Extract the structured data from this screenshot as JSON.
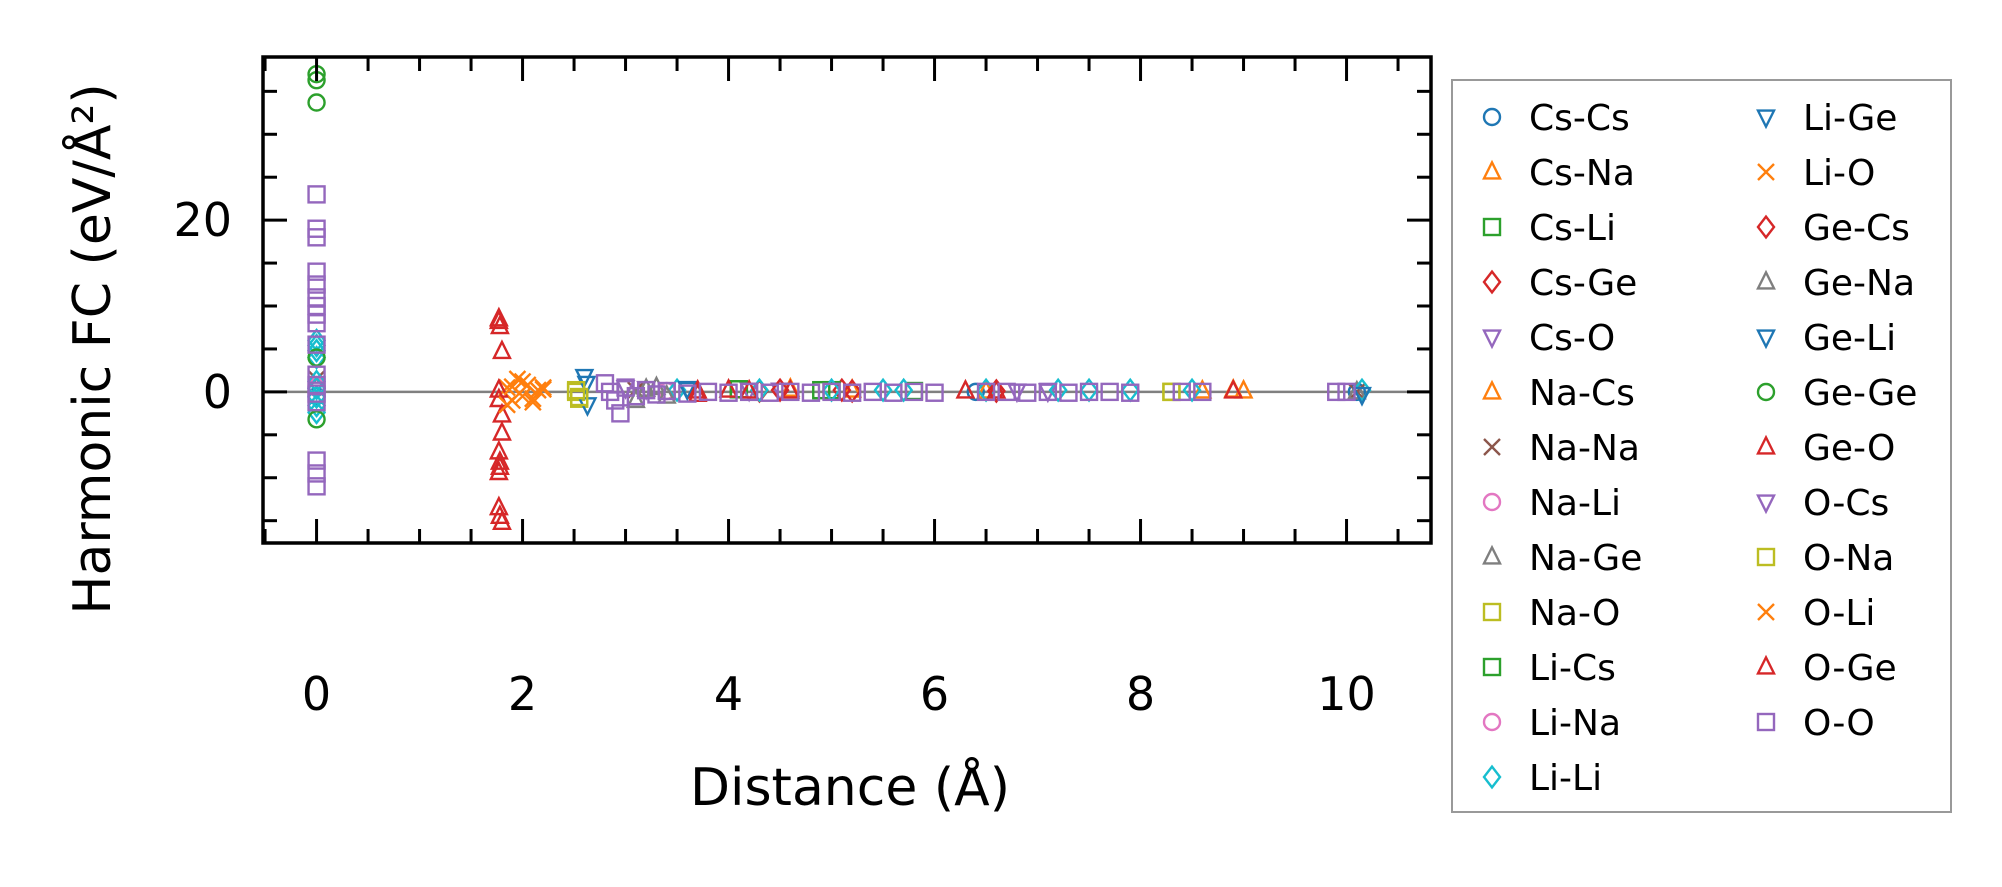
{
  "chart_data": {
    "type": "scatter",
    "title": "",
    "xlabel": "Distance (Å)",
    "ylabel": "Harmonic FC (eV/Å²)",
    "xlim": [
      -0.52,
      10.82
    ],
    "ylim": [
      -17.6,
      39
    ],
    "xticks": [
      0,
      2,
      4,
      6,
      8,
      10
    ],
    "xtick_labels": [
      "0",
      "2",
      "4",
      "6",
      "8",
      "10"
    ],
    "yticks": [
      0,
      20
    ],
    "ytick_labels": [
      "0",
      "20"
    ],
    "x_minor_step": 0.5,
    "y_minor_step": 5,
    "reference_line_y": 0,
    "legend_placement": "outside-right",
    "series": [
      {
        "name": "Cs-Cs",
        "color": "#1f77b4",
        "marker": "circle",
        "points": [
          [
            0,
            0.5
          ],
          [
            0,
            -0.5
          ],
          [
            6.4,
            0
          ],
          [
            10.1,
            0
          ]
        ]
      },
      {
        "name": "Cs-Na",
        "color": "#ff7f0e",
        "marker": "triangle-up",
        "points": [
          [
            4.6,
            0.3
          ],
          [
            5.2,
            0.2
          ],
          [
            6.5,
            0.1
          ],
          [
            8.9,
            0.2
          ]
        ]
      },
      {
        "name": "Cs-Li",
        "color": "#2ca02c",
        "marker": "square",
        "points": [
          [
            4.1,
            0.3
          ],
          [
            4.9,
            0.2
          ],
          [
            5.8,
            0.1
          ]
        ]
      },
      {
        "name": "Cs-Ge",
        "color": "#d62728",
        "marker": "diamond",
        "points": [
          [
            4.3,
            0.1
          ],
          [
            5.1,
            0.2
          ],
          [
            6.6,
            0.1
          ]
        ]
      },
      {
        "name": "Cs-O",
        "color": "#9467bd",
        "marker": "triangle-down",
        "points": [
          [
            3.2,
            0.4
          ],
          [
            4.5,
            0.2
          ],
          [
            7.1,
            0.1
          ]
        ]
      },
      {
        "name": "Na-Cs",
        "color": "#ff7f0e",
        "marker": "triangle-up",
        "points": [
          [
            4.6,
            0.3
          ],
          [
            8.6,
            0.1
          ],
          [
            9.0,
            0.1
          ]
        ]
      },
      {
        "name": "Na-Na",
        "color": "#8c564b",
        "marker": "x",
        "points": [
          [
            0,
            1.5
          ],
          [
            3.1,
            0.2
          ],
          [
            10.1,
            0
          ]
        ]
      },
      {
        "name": "Na-Li",
        "color": "#e377c2",
        "marker": "circle",
        "points": [
          [
            0,
            0.8
          ],
          [
            3.4,
            0.1
          ]
        ]
      },
      {
        "name": "Na-Ge",
        "color": "#7f7f7f",
        "marker": "triangle-up",
        "points": [
          [
            3.1,
            -1
          ],
          [
            3.3,
            0.5
          ],
          [
            10.1,
            0
          ]
        ]
      },
      {
        "name": "Na-O",
        "color": "#bcbd22",
        "marker": "square",
        "points": [
          [
            2.52,
            0
          ],
          [
            2.55,
            -0.8
          ],
          [
            8.3,
            0
          ]
        ]
      },
      {
        "name": "Li-Cs",
        "color": "#2ca02c",
        "marker": "square",
        "points": [
          [
            4.1,
            0.3
          ],
          [
            5.0,
            0.2
          ]
        ]
      },
      {
        "name": "Li-Na",
        "color": "#e377c2",
        "marker": "circle",
        "points": [
          [
            0,
            0.5
          ],
          [
            3.4,
            0.1
          ]
        ]
      },
      {
        "name": "Li-Li",
        "color": "#17becf",
        "marker": "diamond",
        "points": [
          [
            0,
            6
          ],
          [
            0,
            5.4
          ],
          [
            0,
            4.8
          ],
          [
            0,
            4
          ],
          [
            0,
            1.2
          ],
          [
            0,
            0.4
          ],
          [
            0,
            -0.6
          ],
          [
            0,
            -1.6
          ],
          [
            0,
            -2.4
          ],
          [
            3.5,
            0.2
          ],
          [
            4.3,
            0.2
          ],
          [
            5.0,
            0.2
          ],
          [
            5.5,
            0.2
          ],
          [
            5.7,
            0.2
          ],
          [
            6.5,
            0.2
          ],
          [
            7.2,
            0.2
          ],
          [
            7.5,
            0.2
          ],
          [
            7.9,
            0.2
          ],
          [
            8.5,
            0.2
          ],
          [
            10.15,
            0.2
          ]
        ]
      },
      {
        "name": "Li-Ge",
        "color": "#1f77b4",
        "marker": "triangle-down",
        "points": [
          [
            2.6,
            1.8
          ],
          [
            2.63,
            -1.5
          ],
          [
            3.6,
            0.4
          ]
        ]
      },
      {
        "name": "Li-O",
        "color": "#ff7f0e",
        "marker": "x",
        "points": [
          [
            1.85,
            0.5
          ],
          [
            1.9,
            -1
          ],
          [
            1.95,
            1.5
          ],
          [
            2.0,
            -0.5
          ],
          [
            2.05,
            0.8
          ],
          [
            2.1,
            -1.2
          ],
          [
            2.15,
            0.2
          ],
          [
            2.2,
            0.5
          ]
        ]
      },
      {
        "name": "Ge-Cs",
        "color": "#d62728",
        "marker": "diamond",
        "points": [
          [
            4.5,
            0.2
          ],
          [
            5.2,
            0.1
          ],
          [
            6.6,
            0.1
          ]
        ]
      },
      {
        "name": "Ge-Na",
        "color": "#7f7f7f",
        "marker": "triangle-up",
        "points": [
          [
            3.2,
            0.3
          ],
          [
            3.4,
            -0.5
          ]
        ]
      },
      {
        "name": "Ge-Li",
        "color": "#1f77b4",
        "marker": "triangle-down",
        "points": [
          [
            2.62,
            1
          ],
          [
            3.6,
            0.3
          ],
          [
            10.15,
            -0.3
          ]
        ]
      },
      {
        "name": "Ge-Ge",
        "color": "#2ca02c",
        "marker": "circle",
        "points": [
          [
            0,
            37
          ],
          [
            0,
            36.3
          ],
          [
            0,
            33.7
          ],
          [
            0,
            4
          ],
          [
            0,
            -3.2
          ]
        ]
      },
      {
        "name": "Ge-O",
        "color": "#d62728",
        "marker": "triangle-up",
        "points": [
          [
            1.77,
            8.5
          ],
          [
            1.78,
            7.6
          ],
          [
            1.8,
            4.7
          ],
          [
            1.77,
            0.2
          ],
          [
            1.77,
            -0.9
          ],
          [
            1.8,
            -2.7
          ],
          [
            1.8,
            -4.8
          ],
          [
            1.77,
            -7
          ],
          [
            1.78,
            -8.2
          ],
          [
            1.77,
            -9.4
          ],
          [
            1.77,
            -13.5
          ],
          [
            1.78,
            -14.5
          ],
          [
            1.8,
            -15.2
          ],
          [
            3.7,
            0.1
          ],
          [
            4.0,
            0.2
          ],
          [
            4.6,
            0.1
          ],
          [
            6.3,
            0.1
          ],
          [
            6.6,
            0.1
          ],
          [
            8.9,
            0.1
          ]
        ]
      },
      {
        "name": "O-Cs",
        "color": "#9467bd",
        "marker": "triangle-down",
        "points": [
          [
            3.0,
            0.5
          ],
          [
            4.2,
            0.2
          ],
          [
            6.8,
            0.1
          ]
        ]
      },
      {
        "name": "O-Na",
        "color": "#bcbd22",
        "marker": "square",
        "points": [
          [
            2.52,
            0.2
          ],
          [
            2.55,
            -0.6
          ],
          [
            8.3,
            0
          ]
        ]
      },
      {
        "name": "O-Li",
        "color": "#ff7f0e",
        "marker": "x",
        "points": [
          [
            1.85,
            -1.5
          ],
          [
            1.9,
            0.6
          ],
          [
            2.0,
            1.2
          ],
          [
            2.1,
            -0.8
          ],
          [
            2.2,
            0.3
          ]
        ]
      },
      {
        "name": "O-Ge",
        "color": "#d62728",
        "marker": "triangle-up",
        "points": [
          [
            1.77,
            8.2
          ],
          [
            1.78,
            -8.8
          ],
          [
            3.7,
            -0.3
          ],
          [
            4.2,
            0.1
          ]
        ]
      },
      {
        "name": "O-O",
        "color": "#9467bd",
        "marker": "square",
        "points": [
          [
            0,
            23
          ],
          [
            0,
            19
          ],
          [
            0,
            18
          ],
          [
            0,
            14
          ],
          [
            0,
            12.5
          ],
          [
            0,
            11
          ],
          [
            0,
            10
          ],
          [
            0,
            9
          ],
          [
            0,
            8
          ],
          [
            0,
            5.5
          ],
          [
            0,
            2
          ],
          [
            0,
            0.8
          ],
          [
            0,
            -0.2
          ],
          [
            0,
            -1.2
          ],
          [
            0,
            -8
          ],
          [
            0,
            -9.5
          ],
          [
            0,
            -11
          ],
          [
            2.8,
            1
          ],
          [
            2.85,
            0
          ],
          [
            2.9,
            -1
          ],
          [
            2.95,
            -2.5
          ],
          [
            3.0,
            0.5
          ],
          [
            3.1,
            -0.5
          ],
          [
            3.2,
            0.2
          ],
          [
            3.3,
            -0.3
          ],
          [
            3.4,
            0.1
          ],
          [
            3.6,
            -0.2
          ],
          [
            3.8,
            0
          ],
          [
            4.0,
            -0.1
          ],
          [
            4.2,
            0
          ],
          [
            4.4,
            -0.1
          ],
          [
            4.6,
            0
          ],
          [
            4.8,
            -0.1
          ],
          [
            5.0,
            0
          ],
          [
            5.2,
            -0.1
          ],
          [
            5.4,
            0
          ],
          [
            5.6,
            -0.1
          ],
          [
            5.8,
            0
          ],
          [
            6.0,
            -0.1
          ],
          [
            6.5,
            0
          ],
          [
            6.7,
            0
          ],
          [
            6.9,
            -0.1
          ],
          [
            7.1,
            0
          ],
          [
            7.3,
            -0.1
          ],
          [
            7.5,
            0
          ],
          [
            7.7,
            0
          ],
          [
            7.9,
            -0.1
          ],
          [
            8.4,
            0
          ],
          [
            8.6,
            0
          ],
          [
            9.9,
            0
          ],
          [
            10.0,
            0
          ]
        ]
      }
    ]
  }
}
